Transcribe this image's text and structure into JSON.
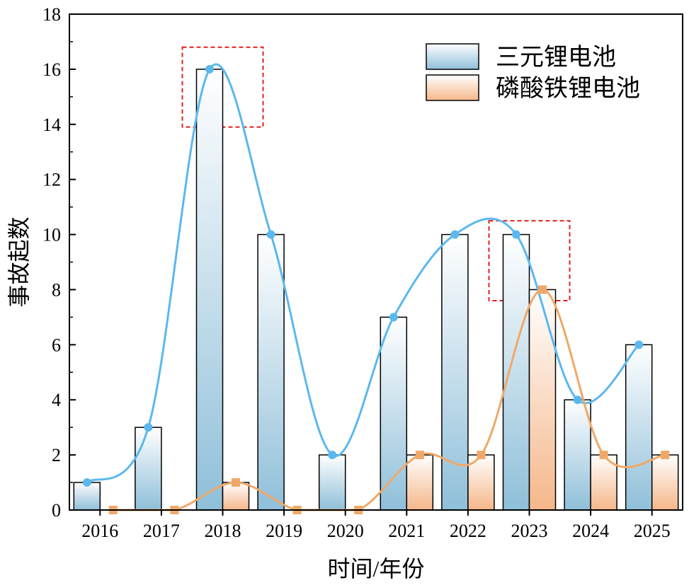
{
  "chart_data": {
    "type": "bar",
    "title": "",
    "xlabel": "时间/年份",
    "ylabel": "事故起数",
    "ylim": [
      0,
      18
    ],
    "yticks": [
      0,
      2,
      4,
      6,
      8,
      10,
      12,
      14,
      16,
      18
    ],
    "categories": [
      "2016",
      "2017",
      "2018",
      "2019",
      "2020",
      "2021",
      "2022",
      "2023",
      "2024",
      "2025"
    ],
    "series": [
      {
        "name": "三元锂电池",
        "values": [
          1,
          3,
          16,
          10,
          2,
          7,
          10,
          10,
          4,
          6
        ],
        "color": "#5bb8ef",
        "fill_top": "#ffffff",
        "fill_bottom": "#8fbfd9",
        "marker": "circle"
      },
      {
        "name": "磷酸铁锂电池",
        "values": [
          0,
          0,
          1,
          0,
          0,
          2,
          2,
          8,
          2,
          2
        ],
        "color": "#f0a868",
        "fill_top": "#ffffff",
        "fill_bottom": "#f5b78a",
        "marker": "square"
      }
    ],
    "legend_position": "top-right",
    "annotations": [
      {
        "type": "dashed-box",
        "category": "2018",
        "y_range": [
          13.9,
          16.8
        ],
        "color": "#e0201e"
      },
      {
        "type": "dashed-box",
        "category": "2023",
        "y_range": [
          7.6,
          10.5
        ],
        "color": "#e0201e"
      }
    ]
  }
}
